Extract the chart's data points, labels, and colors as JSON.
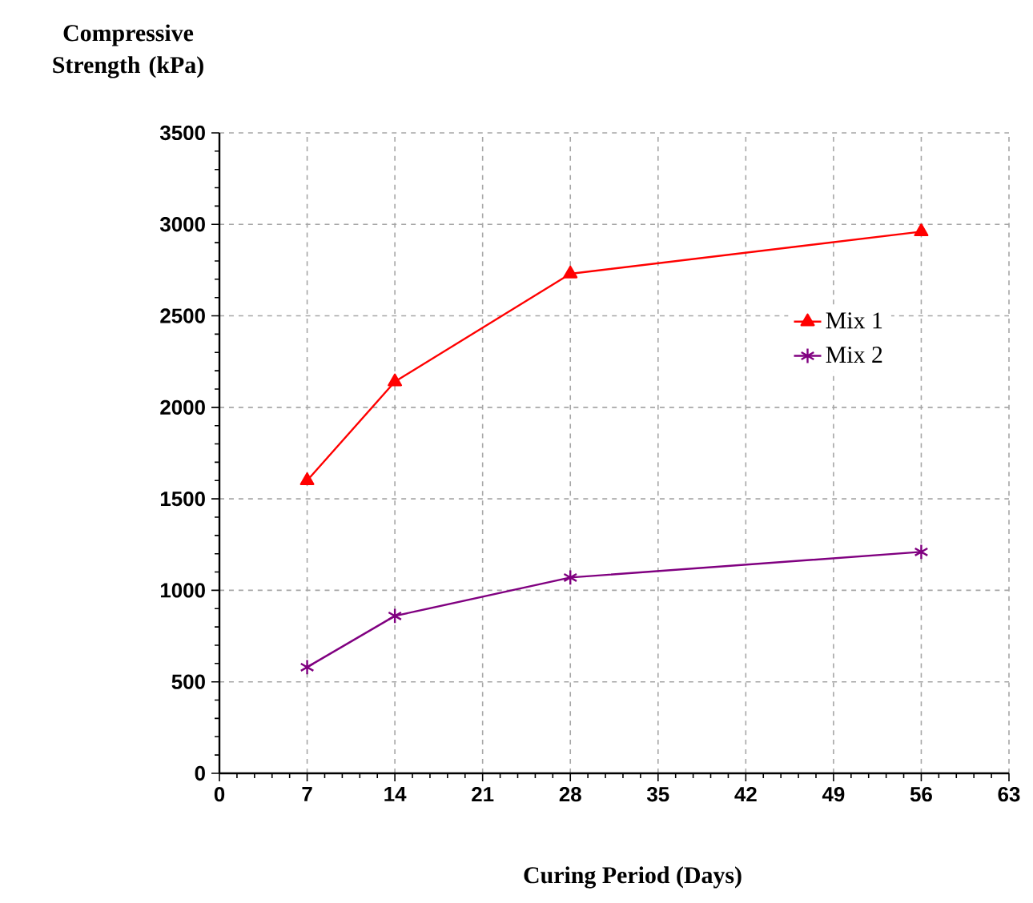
{
  "chart_data": {
    "type": "line",
    "xlabel": "Curing Period (Days)",
    "ylabel": "Compressive Strength (kPa)",
    "x": [
      7,
      14,
      28,
      56
    ],
    "series": [
      {
        "name": "Mix 1",
        "color": "#ff0000",
        "marker": "triangle",
        "values": [
          1600,
          2140,
          2730,
          2960
        ]
      },
      {
        "name": "Mix 2",
        "color": "#800080",
        "marker": "cross",
        "values": [
          580,
          860,
          1070,
          1210
        ]
      }
    ],
    "xlim": [
      0,
      63
    ],
    "xticks": [
      0,
      7,
      14,
      21,
      28,
      35,
      42,
      49,
      56,
      63
    ],
    "ylim": [
      0,
      3500
    ],
    "yticks": [
      0,
      500,
      1000,
      1500,
      2000,
      2500,
      3000,
      3500
    ],
    "grid": true,
    "legend": "right",
    "line_style": "solid"
  }
}
